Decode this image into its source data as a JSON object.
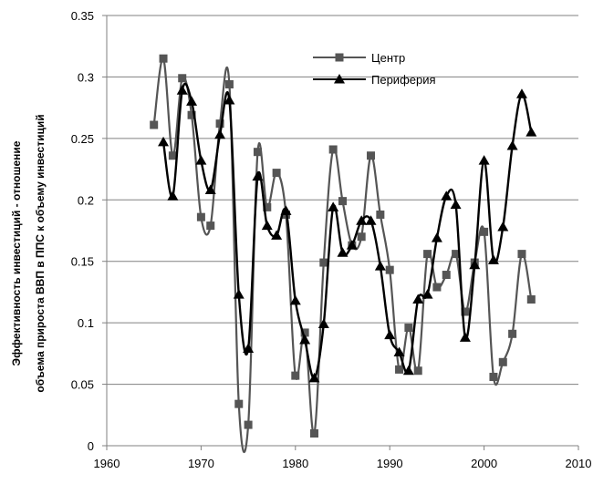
{
  "chart_data": {
    "type": "line",
    "ylabel_lines": [
      "Эффективность инвестиций  - отношение",
      "объема прироста ВВП в ППС к объему инвестиций"
    ],
    "xlim": [
      1960,
      2010
    ],
    "ylim": [
      0,
      0.35
    ],
    "x_ticks": [
      1960,
      1970,
      1980,
      1990,
      2000,
      2010
    ],
    "y_ticks": [
      0,
      0.05,
      0.1,
      0.15,
      0.2,
      0.25,
      0.3,
      0.35
    ],
    "y_tick_labels": [
      "0",
      "0.05",
      "0.1",
      "0.15",
      "0.2",
      "0.25",
      "0.3",
      "0.35"
    ],
    "grid": "horizontal",
    "legend_position": "top-right",
    "series": [
      {
        "name": "Центр",
        "marker": "square",
        "color": "#555555",
        "x": [
          1965,
          1966,
          1967,
          1968,
          1969,
          1970,
          1971,
          1972,
          1973,
          1974,
          1975,
          1976,
          1977,
          1978,
          1979,
          1980,
          1981,
          1982,
          1983,
          1984,
          1985,
          1986,
          1987,
          1988,
          1989,
          1990,
          1991,
          1992,
          1993,
          1994,
          1995,
          1996,
          1997,
          1998,
          1999,
          2000,
          2001,
          2002,
          2003,
          2004,
          2005
        ],
        "values": [
          0.261,
          0.315,
          0.236,
          0.299,
          0.269,
          0.186,
          0.179,
          0.262,
          0.294,
          0.034,
          0.017,
          0.239,
          0.194,
          0.222,
          0.188,
          0.057,
          0.092,
          0.01,
          0.149,
          0.241,
          0.199,
          0.163,
          0.17,
          0.236,
          0.188,
          0.143,
          0.062,
          0.096,
          0.061,
          0.156,
          0.129,
          0.139,
          0.156,
          0.109,
          0.149,
          0.174,
          0.056,
          0.068,
          0.091,
          0.156,
          0.119
        ]
      },
      {
        "name": "Периферия",
        "marker": "triangle",
        "color": "#000000",
        "x": [
          1966,
          1967,
          1968,
          1969,
          1970,
          1971,
          1972,
          1973,
          1974,
          1975,
          1976,
          1977,
          1978,
          1979,
          1980,
          1981,
          1982,
          1983,
          1984,
          1985,
          1986,
          1987,
          1988,
          1989,
          1990,
          1991,
          1992,
          1993,
          1994,
          1995,
          1996,
          1997,
          1998,
          1999,
          2000,
          2001,
          2002,
          2003,
          2004,
          2005
        ],
        "values": [
          0.247,
          0.203,
          0.289,
          0.28,
          0.232,
          0.208,
          0.253,
          0.281,
          0.123,
          0.079,
          0.219,
          0.179,
          0.171,
          0.191,
          0.118,
          0.086,
          0.055,
          0.099,
          0.194,
          0.157,
          0.163,
          0.183,
          0.183,
          0.146,
          0.09,
          0.076,
          0.061,
          0.119,
          0.123,
          0.169,
          0.203,
          0.196,
          0.088,
          0.147,
          0.232,
          0.151,
          0.178,
          0.244,
          0.286,
          0.255
        ]
      }
    ]
  }
}
